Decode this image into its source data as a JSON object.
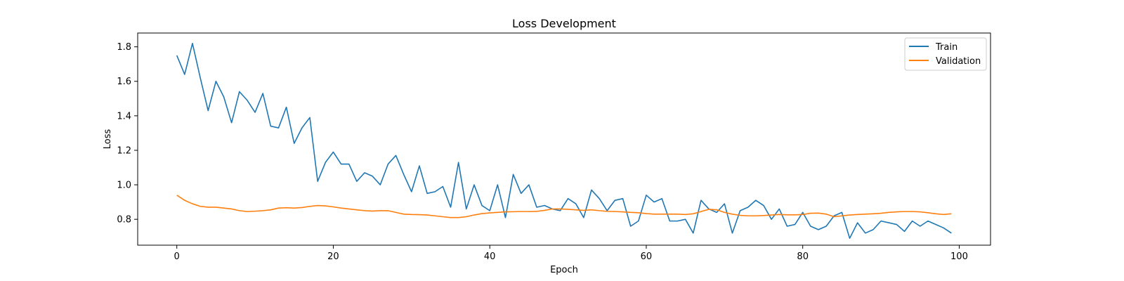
{
  "chart_data": {
    "type": "line",
    "title": "Loss Development",
    "xlabel": "Epoch",
    "ylabel": "Loss",
    "xlim": [
      -5,
      104
    ],
    "ylim": [
      0.65,
      1.88
    ],
    "xticks": [
      0,
      20,
      40,
      60,
      80,
      100
    ],
    "xtick_labels": [
      "0",
      "20",
      "40",
      "60",
      "80",
      "100"
    ],
    "yticks": [
      0.8,
      1.0,
      1.2,
      1.4,
      1.6,
      1.8
    ],
    "ytick_labels": [
      "0.8",
      "1.0",
      "1.2",
      "1.4",
      "1.6",
      "1.8"
    ],
    "grid": false,
    "legend_position": "top-right",
    "x": [
      0,
      1,
      2,
      3,
      4,
      5,
      6,
      7,
      8,
      9,
      10,
      11,
      12,
      13,
      14,
      15,
      16,
      17,
      18,
      19,
      20,
      21,
      22,
      23,
      24,
      25,
      26,
      27,
      28,
      29,
      30,
      31,
      32,
      33,
      34,
      35,
      36,
      37,
      38,
      39,
      40,
      41,
      42,
      43,
      44,
      45,
      46,
      47,
      48,
      49,
      50,
      51,
      52,
      53,
      54,
      55,
      56,
      57,
      58,
      59,
      60,
      61,
      62,
      63,
      64,
      65,
      66,
      67,
      68,
      69,
      70,
      71,
      72,
      73,
      74,
      75,
      76,
      77,
      78,
      79,
      80,
      81,
      82,
      83,
      84,
      85,
      86,
      87,
      88,
      89,
      90,
      91,
      92,
      93,
      94,
      95,
      96,
      97,
      98,
      99
    ],
    "series": [
      {
        "name": "Train",
        "color": "#1f77b4",
        "values": [
          1.75,
          1.64,
          1.82,
          1.62,
          1.43,
          1.6,
          1.51,
          1.36,
          1.54,
          1.49,
          1.42,
          1.53,
          1.34,
          1.33,
          1.45,
          1.24,
          1.33,
          1.39,
          1.02,
          1.13,
          1.19,
          1.12,
          1.12,
          1.02,
          1.07,
          1.05,
          1.0,
          1.12,
          1.17,
          1.06,
          0.96,
          1.11,
          0.95,
          0.96,
          0.99,
          0.87,
          1.13,
          0.86,
          1.0,
          0.88,
          0.85,
          1.0,
          0.81,
          1.06,
          0.95,
          1.0,
          0.87,
          0.88,
          0.86,
          0.85,
          0.92,
          0.89,
          0.81,
          0.97,
          0.92,
          0.85,
          0.91,
          0.92,
          0.76,
          0.79,
          0.94,
          0.9,
          0.92,
          0.79,
          0.79,
          0.8,
          0.72,
          0.91,
          0.86,
          0.84,
          0.89,
          0.72,
          0.85,
          0.87,
          0.91,
          0.88,
          0.8,
          0.86,
          0.76,
          0.77,
          0.84,
          0.76,
          0.74,
          0.76,
          0.82,
          0.84,
          0.69,
          0.78,
          0.72,
          0.74,
          0.79,
          0.78,
          0.77,
          0.73,
          0.79,
          0.76,
          0.79,
          0.77,
          0.75,
          0.72
        ]
      },
      {
        "name": "Validation",
        "color": "#ff7f0e",
        "values": [
          0.94,
          0.91,
          0.89,
          0.875,
          0.87,
          0.87,
          0.865,
          0.86,
          0.85,
          0.845,
          0.847,
          0.85,
          0.855,
          0.865,
          0.867,
          0.865,
          0.868,
          0.875,
          0.88,
          0.878,
          0.872,
          0.865,
          0.86,
          0.855,
          0.85,
          0.848,
          0.85,
          0.85,
          0.84,
          0.83,
          0.828,
          0.827,
          0.825,
          0.82,
          0.815,
          0.81,
          0.81,
          0.815,
          0.825,
          0.833,
          0.837,
          0.84,
          0.843,
          0.844,
          0.845,
          0.845,
          0.846,
          0.852,
          0.86,
          0.86,
          0.858,
          0.855,
          0.852,
          0.855,
          0.85,
          0.846,
          0.845,
          0.843,
          0.84,
          0.838,
          0.833,
          0.83,
          0.83,
          0.83,
          0.83,
          0.828,
          0.832,
          0.845,
          0.858,
          0.855,
          0.84,
          0.83,
          0.823,
          0.82,
          0.82,
          0.822,
          0.825,
          0.828,
          0.826,
          0.826,
          0.828,
          0.835,
          0.836,
          0.83,
          0.815,
          0.82,
          0.825,
          0.828,
          0.83,
          0.832,
          0.835,
          0.84,
          0.843,
          0.845,
          0.845,
          0.843,
          0.838,
          0.832,
          0.828,
          0.832
        ]
      }
    ]
  }
}
